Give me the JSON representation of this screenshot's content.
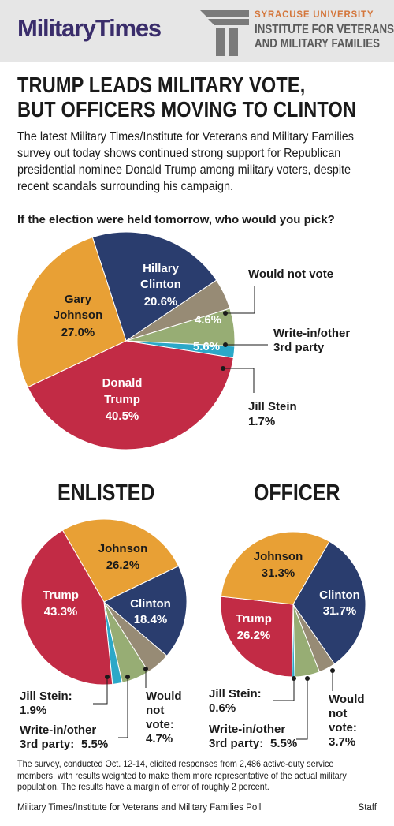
{
  "header": {
    "logo_text": "MilitaryTimes",
    "university": "SYRACUSE UNIVERSITY",
    "institute_line1": "INSTITUTE FOR VETERANS",
    "institute_line2": "AND MILITARY FAMILIES"
  },
  "headline": {
    "line1": "TRUMP LEADS MILITARY VOTE,",
    "line2": "BUT OFFICERS MOVING TO CLINTON"
  },
  "intro": "The latest Military Times/Institute for Veterans and Military Families survey out today shows continued strong support for Republican presidential nominee Donald Trump among military voters, despite recent scandals surrounding his campaign.",
  "question": "If the election were held tomorrow, who would you pick?",
  "colors": {
    "trump": "#c22b45",
    "johnson": "#e8a035",
    "clinton": "#2a3d6e",
    "would_not_vote": "#978b75",
    "write_in": "#97ad74",
    "stein": "#2ba8c8"
  },
  "chart_data": [
    {
      "type": "pie",
      "title": "",
      "slices": [
        {
          "key": "clinton",
          "label": "Hillary Clinton",
          "value": 20.6,
          "text": "20.6%"
        },
        {
          "key": "would_not_vote",
          "label": "Would not vote",
          "value": 4.6,
          "text": "4.6%"
        },
        {
          "key": "write_in",
          "label": "Write-in/other 3rd party",
          "value": 5.6,
          "text": "5.6%"
        },
        {
          "key": "stein",
          "label": "Jill Stein",
          "value": 1.7,
          "text": "1.7%"
        },
        {
          "key": "trump",
          "label": "Donald Trump",
          "value": 40.5,
          "text": "40.5%"
        },
        {
          "key": "johnson",
          "label": "Gary Johnson",
          "value": 27.0,
          "text": "27.0%"
        }
      ]
    },
    {
      "type": "pie",
      "title": "ENLISTED",
      "slices": [
        {
          "key": "johnson",
          "label": "Johnson",
          "value": 26.2,
          "text": "26.2%"
        },
        {
          "key": "clinton",
          "label": "Clinton",
          "value": 18.4,
          "text": "18.4%"
        },
        {
          "key": "would_not_vote",
          "label": "Would not vote:",
          "value": 4.7,
          "text": "4.7%"
        },
        {
          "key": "write_in",
          "label": "Write-in/other 3rd party:",
          "value": 5.5,
          "text": "5.5%"
        },
        {
          "key": "stein",
          "label": "Jill Stein:",
          "value": 1.9,
          "text": "1.9%"
        },
        {
          "key": "trump",
          "label": "Trump",
          "value": 43.3,
          "text": "43.3%"
        }
      ]
    },
    {
      "type": "pie",
      "title": "OFFICER",
      "slices": [
        {
          "key": "clinton",
          "label": "Clinton",
          "value": 31.7,
          "text": "31.7%"
        },
        {
          "key": "would_not_vote",
          "label": "Would not vote:",
          "value": 3.7,
          "text": "3.7%"
        },
        {
          "key": "write_in",
          "label": "Write-in/other 3rd party:",
          "value": 5.5,
          "text": "5.5%"
        },
        {
          "key": "stein",
          "label": "Jill Stein:",
          "value": 0.6,
          "text": "0.6%"
        },
        {
          "key": "trump",
          "label": "Trump",
          "value": 26.2,
          "text": "26.2%"
        },
        {
          "key": "johnson",
          "label": "Johnson",
          "value": 31.3,
          "text": "31.3%"
        }
      ]
    }
  ],
  "labels": {
    "main": {
      "clinton_l1": "Hillary",
      "clinton_l2": "Clinton",
      "johnson_l1": "Gary",
      "johnson_l2": "Johnson",
      "trump_l1": "Donald",
      "trump_l2": "Trump",
      "wnv": "Would not vote",
      "write_l1": "Write-in/other",
      "write_l2": "3rd party",
      "stein": "Jill Stein"
    },
    "small": {
      "johnson": "Johnson",
      "clinton": "Clinton",
      "trump": "Trump",
      "stein": "Jill Stein:",
      "write_l1": "Write-in/other",
      "write_l2": "3rd party:",
      "wnv_l1": "Would",
      "wnv_l2": "not",
      "wnv_l3": "vote:"
    }
  },
  "footnote": "The survey, conducted Oct. 12-14, elicited responses from 2,486 active-duty service members, with results weighted to make them more representative of the actual military population. The results have a margin of error of roughly 2 percent.",
  "source": "Military Times/Institute for Veterans and Military Families Poll",
  "credit": "Staff"
}
